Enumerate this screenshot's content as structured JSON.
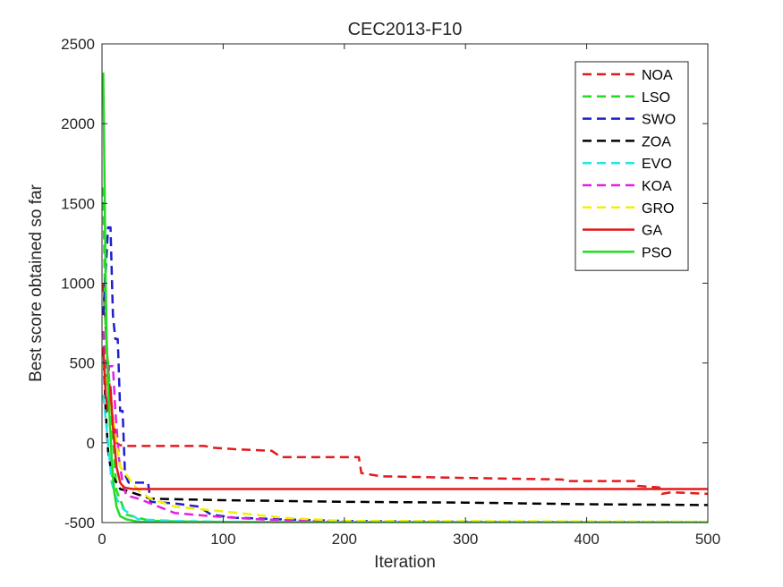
{
  "chart_data": {
    "type": "line",
    "title": "CEC2013-F10",
    "xlabel": "Iteration",
    "ylabel": "Best score obtained so far",
    "xlim": [
      0,
      500
    ],
    "ylim": [
      -500,
      2500
    ],
    "xticks": [
      0,
      100,
      200,
      300,
      400,
      500
    ],
    "yticks": [
      -500,
      0,
      500,
      1000,
      1500,
      2000,
      2500
    ],
    "xtick_labels": [
      "0",
      "100",
      "200",
      "300",
      "400",
      "500"
    ],
    "ytick_labels": [
      "-500",
      "0",
      "500",
      "1000",
      "1500",
      "2000",
      "2500"
    ],
    "grid": false,
    "legend_position": "top-right",
    "series": [
      {
        "name": "NOA",
        "color": "#e41a1c",
        "style": "dashed",
        "x": [
          1,
          5,
          8,
          12,
          15,
          20,
          60,
          85,
          90,
          110,
          140,
          148,
          150,
          200,
          212,
          214,
          230,
          300,
          380,
          382,
          440,
          442,
          460,
          462,
          470,
          500
        ],
        "y": [
          1000,
          450,
          200,
          0,
          -15,
          -20,
          -20,
          -20,
          -30,
          -40,
          -50,
          -90,
          -90,
          -90,
          -90,
          -190,
          -210,
          -220,
          -230,
          -240,
          -240,
          -270,
          -280,
          -320,
          -310,
          -320
        ]
      },
      {
        "name": "LSO",
        "color": "#22dd22",
        "style": "dashed",
        "x": [
          1,
          3,
          5,
          8,
          12,
          20,
          40,
          80,
          150,
          300,
          500
        ],
        "y": [
          1600,
          650,
          500,
          150,
          -300,
          -450,
          -490,
          -495,
          -497,
          -498,
          -500
        ]
      },
      {
        "name": "SWO",
        "color": "#1f1fcc",
        "style": "dashed",
        "x": [
          1,
          5,
          7,
          9,
          11,
          13,
          15,
          17,
          19,
          22,
          30,
          38,
          40,
          60,
          80,
          90,
          110,
          150,
          200,
          300,
          500
        ],
        "y": [
          800,
          1350,
          1350,
          800,
          650,
          650,
          200,
          200,
          -200,
          -250,
          -250,
          -250,
          -370,
          -380,
          -400,
          -450,
          -470,
          -480,
          -490,
          -495,
          -497
        ]
      },
      {
        "name": "ZOA",
        "color": "#000000",
        "style": "dashed",
        "x": [
          1,
          3,
          5,
          8,
          12,
          15,
          20,
          40,
          100,
          200,
          300,
          400,
          500
        ],
        "y": [
          600,
          200,
          -50,
          -200,
          -250,
          -290,
          -300,
          -350,
          -360,
          -370,
          -375,
          -385,
          -390
        ]
      },
      {
        "name": "EVO",
        "color": "#22e6e6",
        "style": "dashed",
        "x": [
          1,
          3,
          5,
          8,
          12,
          18,
          30,
          60,
          100,
          200,
          500
        ],
        "y": [
          300,
          150,
          0,
          -250,
          -350,
          -420,
          -480,
          -490,
          -495,
          -497,
          -498
        ]
      },
      {
        "name": "KOA",
        "color": "#e61ee6",
        "style": "dashed",
        "x": [
          1,
          4,
          6,
          9,
          11,
          14,
          17,
          20,
          30,
          40,
          60,
          90,
          130,
          200,
          500
        ],
        "y": [
          700,
          350,
          480,
          480,
          200,
          -100,
          -250,
          -330,
          -350,
          -380,
          -440,
          -460,
          -480,
          -495,
          -497
        ]
      },
      {
        "name": "GRO",
        "color": "#f0f000",
        "style": "dashed",
        "x": [
          1,
          5,
          10,
          15,
          20,
          30,
          40,
          60,
          100,
          150,
          200,
          500
        ],
        "y": [
          500,
          350,
          100,
          -150,
          -200,
          -300,
          -350,
          -400,
          -430,
          -470,
          -490,
          -495
        ]
      },
      {
        "name": "GA",
        "color": "#e41a1c",
        "style": "solid",
        "x": [
          1,
          3,
          5,
          7,
          9,
          12,
          15,
          18,
          25,
          500
        ],
        "y": [
          600,
          300,
          200,
          350,
          100,
          -150,
          -250,
          -280,
          -290,
          -290
        ]
      },
      {
        "name": "PSO",
        "color": "#22dd22",
        "style": "solid",
        "x": [
          1,
          2,
          3,
          4,
          5,
          6,
          7,
          8,
          10,
          12,
          15,
          20,
          30,
          50,
          100,
          500
        ],
        "y": [
          2320,
          1700,
          1000,
          600,
          350,
          200,
          50,
          -100,
          -300,
          -400,
          -460,
          -480,
          -495,
          -497,
          -499,
          -500
        ]
      }
    ]
  }
}
